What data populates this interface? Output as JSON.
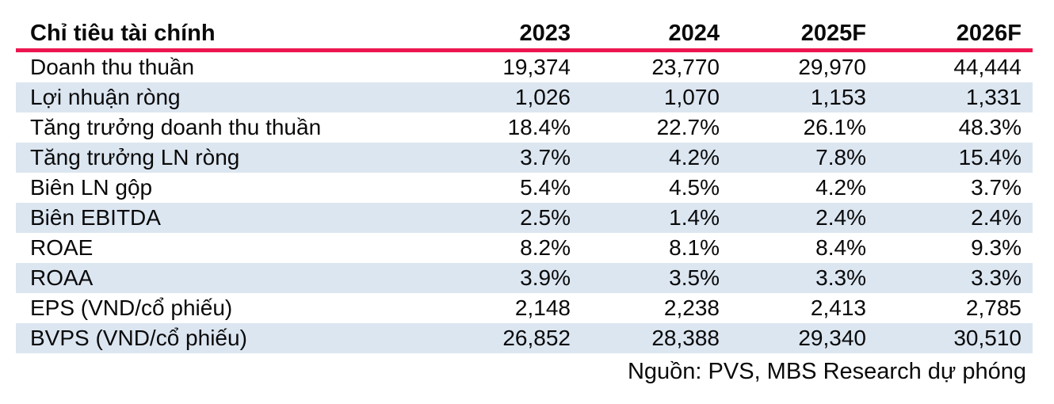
{
  "chart_data": {
    "type": "table",
    "columns": [
      "Chỉ tiêu tài chính",
      "2023",
      "2024",
      "2025F",
      "2026F"
    ],
    "rows": [
      [
        "Doanh thu thuần",
        "19,374",
        "23,770",
        "29,970",
        "44,444"
      ],
      [
        "Lợi nhuận ròng",
        "1,026",
        "1,070",
        "1,153",
        "1,331"
      ],
      [
        "Tăng trưởng doanh thu thuần",
        "18.4%",
        "22.7%",
        "26.1%",
        "48.3%"
      ],
      [
        "Tăng trưởng LN ròng",
        "3.7%",
        "4.2%",
        "7.8%",
        "15.4%"
      ],
      [
        "Biên LN gộp",
        "5.4%",
        "4.5%",
        "4.2%",
        "3.7%"
      ],
      [
        "Biên EBITDA",
        "2.5%",
        "1.4%",
        "2.4%",
        "2.4%"
      ],
      [
        "ROAE",
        "8.2%",
        "8.1%",
        "8.4%",
        "9.3%"
      ],
      [
        "ROAA",
        "3.9%",
        "3.5%",
        "3.3%",
        "3.3%"
      ],
      [
        "EPS (VND/cổ phiếu)",
        "2,148",
        "2,238",
        "2,413",
        "2,785"
      ],
      [
        "BVPS (VND/cổ phiếu)",
        "26,852",
        "28,388",
        "29,340",
        "30,510"
      ]
    ],
    "source": "Nguồn: PVS, MBS Research dự phóng",
    "layout": {
      "stripe_rows": "even",
      "numeric_alignment": "right",
      "header_rule_color": "#EC174F",
      "stripe_color": "#DCE6F1"
    }
  }
}
